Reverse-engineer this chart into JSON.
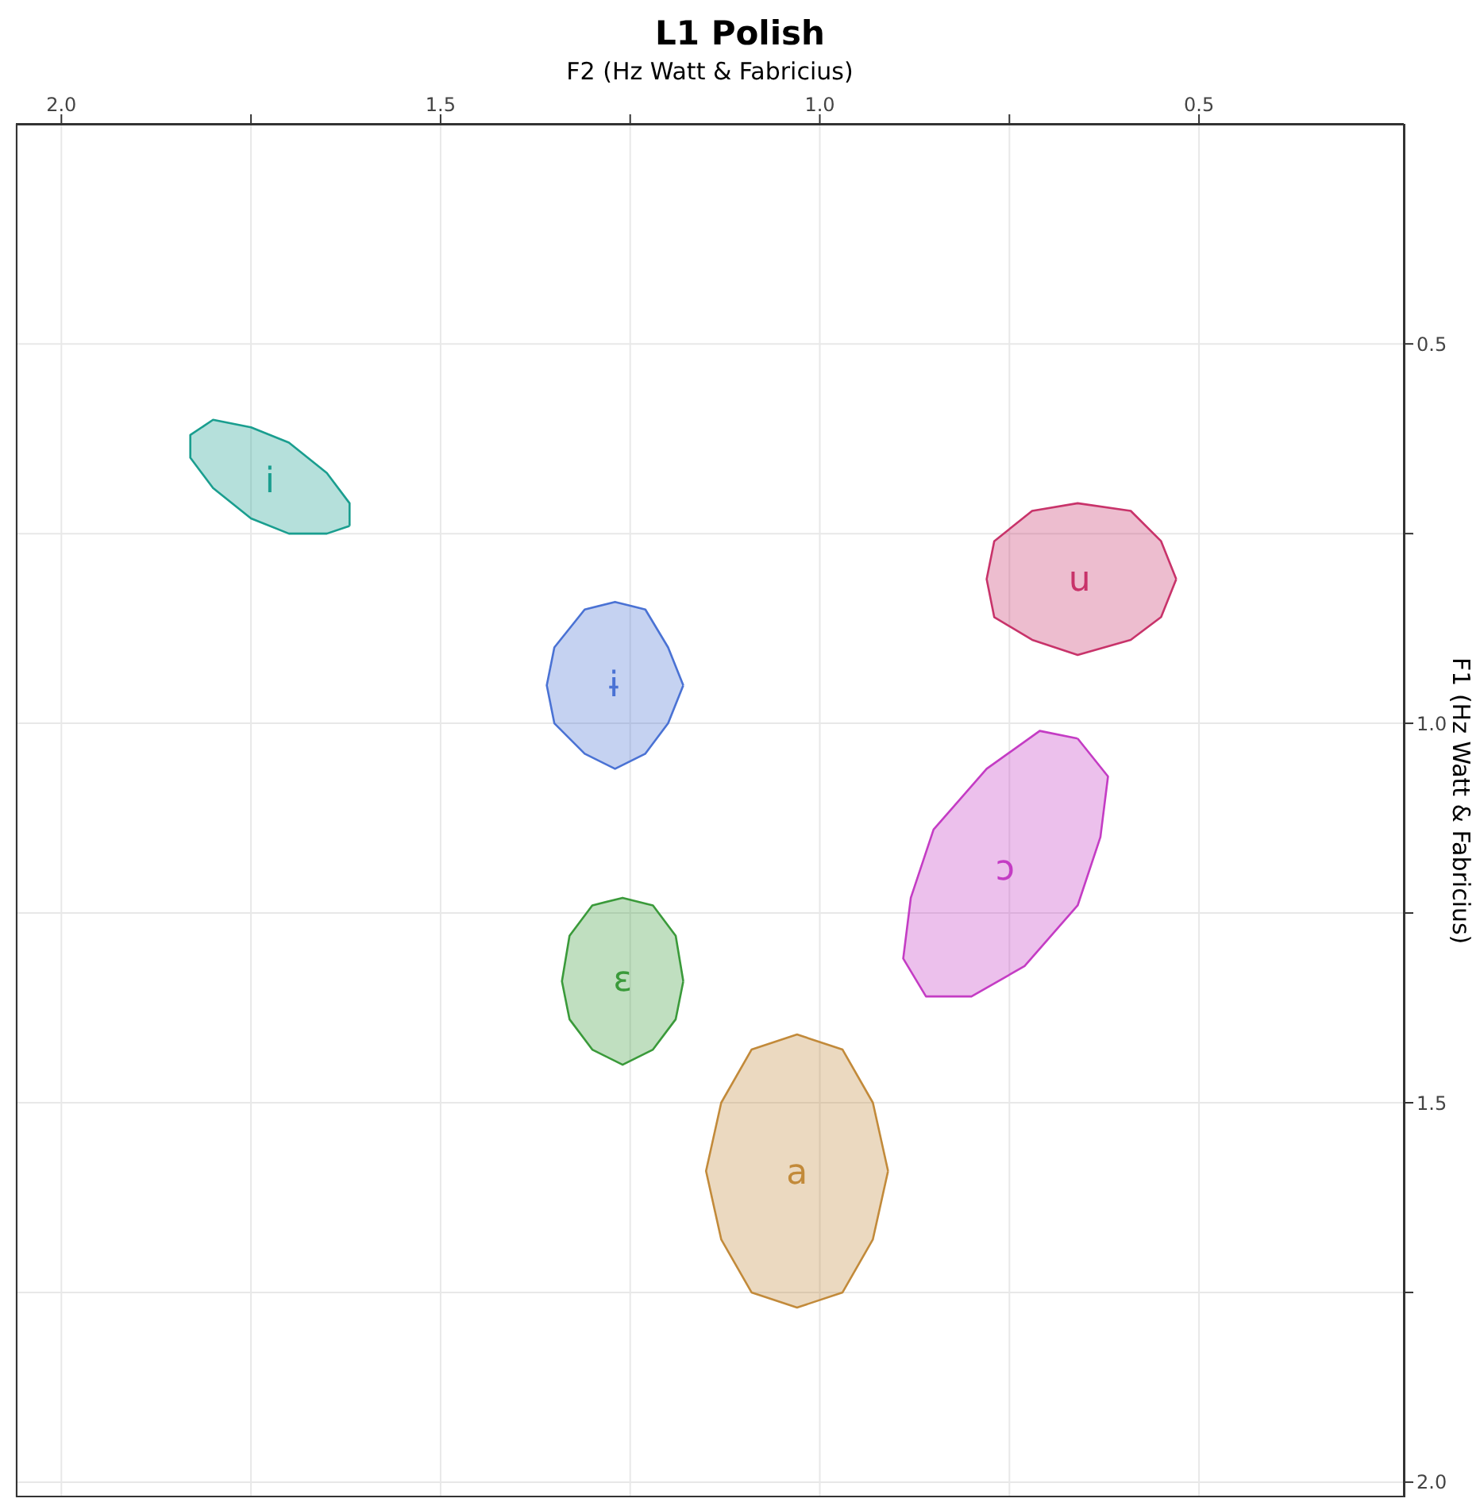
{
  "chart_data": {
    "type": "area",
    "title": "L1 Polish",
    "xlabel": "F2 (Hz Watt & Fabricius)",
    "ylabel": "F1 (Hz Watt & Fabricius)",
    "xlim": [
      2.06,
      0.23
    ],
    "ylim": [
      2.02,
      0.21
    ],
    "xticks": [
      {
        "value": 2,
        "label": "2.0"
      },
      {
        "value": 1.75,
        "label": null
      },
      {
        "value": 1.5,
        "label": "1.5"
      },
      {
        "value": 1.25,
        "label": null
      },
      {
        "value": 1,
        "label": "1.0"
      },
      {
        "value": 0.75,
        "label": null
      },
      {
        "value": 0.5,
        "label": "0.5"
      }
    ],
    "yticks": [
      {
        "value": 0.5,
        "label": "0.5"
      },
      {
        "value": 0.75,
        "label": null
      },
      {
        "value": 1,
        "label": "1.0"
      },
      {
        "value": 1.25,
        "label": null
      },
      {
        "value": 1.5,
        "label": "1.5"
      },
      {
        "value": 1.75,
        "label": null
      },
      {
        "value": 2,
        "label": "2.0"
      }
    ],
    "grid": true,
    "legend": false,
    "marker": "none",
    "line_style": "solid",
    "series": [
      {
        "name": "i",
        "color": "#1a9e8f",
        "x": [
          1.62,
          1.65,
          1.7,
          1.75,
          1.8,
          1.83,
          1.83,
          1.8,
          1.75,
          1.7,
          1.65,
          1.62,
          1.62
        ],
        "values": [
          0.74,
          0.75,
          0.75,
          0.73,
          0.69,
          0.65,
          0.62,
          0.6,
          0.61,
          0.63,
          0.67,
          0.71,
          0.74
        ]
      },
      {
        "name": "ɨ",
        "color": "#4a72d4",
        "x": [
          1.18,
          1.2,
          1.23,
          1.27,
          1.31,
          1.35,
          1.36,
          1.35,
          1.31,
          1.27,
          1.23,
          1.2,
          1.18
        ],
        "values": [
          0.95,
          1.0,
          1.04,
          1.06,
          1.04,
          1.0,
          0.95,
          0.9,
          0.85,
          0.84,
          0.85,
          0.9,
          0.95
        ]
      },
      {
        "name": "u",
        "color": "#c8336a",
        "x": [
          0.53,
          0.55,
          0.59,
          0.66,
          0.72,
          0.77,
          0.78,
          0.77,
          0.72,
          0.66,
          0.59,
          0.55,
          0.53
        ],
        "values": [
          0.81,
          0.86,
          0.89,
          0.91,
          0.89,
          0.86,
          0.81,
          0.76,
          0.72,
          0.71,
          0.72,
          0.76,
          0.81
        ]
      },
      {
        "name": "ɔ",
        "color": "#c43cc4",
        "x": [
          0.66,
          0.62,
          0.63,
          0.66,
          0.73,
          0.8,
          0.86,
          0.89,
          0.88,
          0.85,
          0.78,
          0.71,
          0.66
        ],
        "values": [
          1.02,
          1.07,
          1.15,
          1.24,
          1.32,
          1.36,
          1.36,
          1.31,
          1.23,
          1.14,
          1.06,
          1.01,
          1.02
        ]
      },
      {
        "name": "ɛ",
        "color": "#3a9a3a",
        "x": [
          1.18,
          1.19,
          1.22,
          1.26,
          1.3,
          1.33,
          1.34,
          1.33,
          1.3,
          1.26,
          1.22,
          1.19,
          1.18
        ],
        "values": [
          1.34,
          1.39,
          1.43,
          1.45,
          1.43,
          1.39,
          1.34,
          1.28,
          1.24,
          1.23,
          1.24,
          1.28,
          1.34
        ]
      },
      {
        "name": "a",
        "color": "#c28a3a",
        "x": [
          0.91,
          0.93,
          0.97,
          1.03,
          1.09,
          1.13,
          1.15,
          1.13,
          1.09,
          1.03,
          0.97,
          0.93,
          0.91
        ],
        "values": [
          1.59,
          1.68,
          1.75,
          1.77,
          1.75,
          1.68,
          1.59,
          1.5,
          1.43,
          1.41,
          1.43,
          1.5,
          1.59
        ]
      }
    ]
  }
}
